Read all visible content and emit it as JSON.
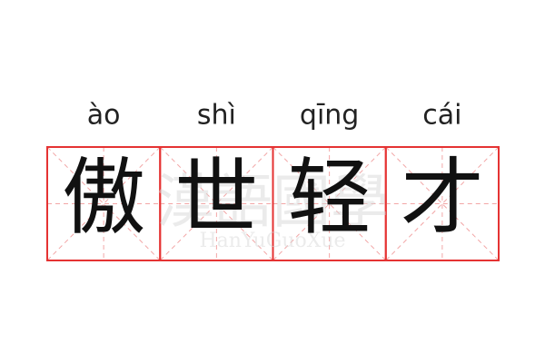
{
  "pinyin": [
    "ào",
    "shì",
    "qīng",
    "cái"
  ],
  "characters": [
    "傲",
    "世",
    "轻",
    "才"
  ],
  "watermark": {
    "title": "漢語國學",
    "site": "HanYuGuoXue"
  }
}
